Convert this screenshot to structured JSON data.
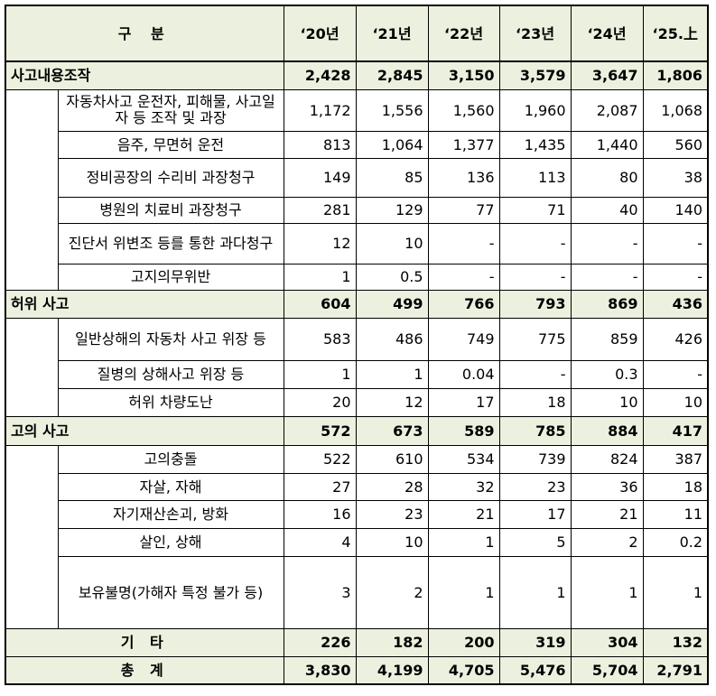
{
  "header": {
    "category": "구 분",
    "years": [
      "‘20년",
      "‘21년",
      "‘22년",
      "‘23년",
      "‘24년",
      "‘25.上"
    ]
  },
  "sections": [
    {
      "label": "사고내용조작",
      "values": [
        "2,428",
        "2,845",
        "3,150",
        "3,579",
        "3,647",
        "1,806"
      ],
      "rows": [
        {
          "label": "자동차사고 운전자, 피해물, 사고일자 등 조작 및 과장",
          "values": [
            "1,172",
            "1,556",
            "1,560",
            "1,960",
            "2,087",
            "1,068"
          ]
        },
        {
          "label": "음주, 무면허 운전",
          "values": [
            "813",
            "1,064",
            "1,377",
            "1,435",
            "1,440",
            "560"
          ]
        },
        {
          "label": "정비공장의 수리비 과장청구",
          "values": [
            "149",
            "85",
            "136",
            "113",
            "80",
            "38"
          ]
        },
        {
          "label": "병원의 치료비 과장청구",
          "values": [
            "281",
            "129",
            "77",
            "71",
            "40",
            "140"
          ]
        },
        {
          "label": "진단서 위변조 등를 통한 과다청구",
          "values": [
            "12",
            "10",
            "-",
            "-",
            "-",
            "-"
          ]
        },
        {
          "label": "고지의무위반",
          "values": [
            "1",
            "0.5",
            "-",
            "-",
            "-",
            "-"
          ]
        }
      ]
    },
    {
      "label": "허위 사고",
      "values": [
        "604",
        "499",
        "766",
        "793",
        "869",
        "436"
      ],
      "rows": [
        {
          "label": "일반상해의 자동차 사고 위장 등",
          "values": [
            "583",
            "486",
            "749",
            "775",
            "859",
            "426"
          ]
        },
        {
          "label": "질병의 상해사고 위장 등",
          "values": [
            "1",
            "1",
            "0.04",
            "-",
            "0.3",
            "-"
          ]
        },
        {
          "label": "허위 차량도난",
          "values": [
            "20",
            "12",
            "17",
            "18",
            "10",
            "10"
          ]
        }
      ]
    },
    {
      "label": "고의 사고",
      "values": [
        "572",
        "673",
        "589",
        "785",
        "884",
        "417"
      ],
      "rows": [
        {
          "label": "고의충돌",
          "values": [
            "522",
            "610",
            "534",
            "739",
            "824",
            "387"
          ]
        },
        {
          "label": "자살, 자해",
          "values": [
            "27",
            "28",
            "32",
            "23",
            "36",
            "18"
          ]
        },
        {
          "label": "자기재산손괴, 방화",
          "values": [
            "16",
            "23",
            "21",
            "17",
            "21",
            "11"
          ]
        },
        {
          "label": "살인, 상해",
          "values": [
            "4",
            "10",
            "1",
            "5",
            "2",
            "0.2"
          ]
        },
        {
          "label": "보유불명(가해자 특정 불가 등)",
          "values": [
            "3",
            "2",
            "1",
            "1",
            "1",
            "1"
          ]
        }
      ]
    }
  ],
  "other": {
    "label": "기 타",
    "values": [
      "226",
      "182",
      "200",
      "319",
      "304",
      "132"
    ]
  },
  "total": {
    "label": "총 계",
    "values": [
      "3,830",
      "4,199",
      "4,705",
      "5,476",
      "5,704",
      "2,791"
    ]
  }
}
